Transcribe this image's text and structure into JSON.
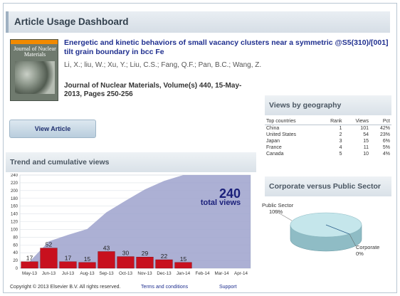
{
  "dashboard": {
    "title": "Article Usage Dashboard"
  },
  "article": {
    "cover_title": "Journal of Nuclear Materials",
    "title": "Energetic and kinetic behaviors of small vacancy clusters near a symmetric @S5(310)/[001] tilt grain boundary in bcc Fe",
    "authors": "Li, X.; liu, W.; Xu, Y.; Liu, C.S.; Fang, Q.F.; Pan, B.C.; Wang, Z.",
    "journal": "Journal of Nuclear Materials, Volume(s) 440, 15-May-2013, Pages 250-256",
    "view_button": "View Article"
  },
  "trend": {
    "title": "Trend and cumulative views",
    "total_value": "240",
    "total_label": "total views"
  },
  "geography": {
    "title": "Views by geography",
    "columns": [
      "Top countries",
      "Rank",
      "Views",
      "Pct"
    ],
    "rows": [
      [
        "China",
        "1",
        "101",
        "42%"
      ],
      [
        "United States",
        "2",
        "54",
        "23%"
      ],
      [
        "Japan",
        "3",
        "15",
        "6%"
      ],
      [
        "France",
        "4",
        "11",
        "5%"
      ],
      [
        "Canada",
        "5",
        "10",
        "4%"
      ]
    ]
  },
  "sector": {
    "title": "Corporate versus Public Sector",
    "public_label": "Public Sector",
    "public_pct": "100%",
    "corporate_label": "Corporate",
    "corporate_pct": "0%"
  },
  "footer": {
    "copyright": "Copyright © 2013 Elsevier B.V. All rights reserved.",
    "terms": "Terms and conditions",
    "support": "Support"
  },
  "chart_data": [
    {
      "type": "bar",
      "title": "Trend and cumulative views",
      "categories": [
        "May-13",
        "Jun-13",
        "Jul-13",
        "Aug-13",
        "Sep-13",
        "Oct-13",
        "Nov-13",
        "Dec-13",
        "Jan-14",
        "Feb-14",
        "Mar-14",
        "Apr-14"
      ],
      "series": [
        {
          "values": [
            17,
            52,
            17,
            15,
            43,
            30,
            29,
            22,
            15,
            null,
            null,
            null
          ]
        }
      ],
      "cumulative": [
        17,
        69,
        86,
        101,
        144,
        174,
        203,
        225,
        240,
        240,
        240,
        240
      ],
      "yticks": [
        0,
        20,
        40,
        60,
        80,
        100,
        120,
        140,
        160,
        180,
        200,
        220,
        240
      ],
      "ylim": [
        0,
        240
      ],
      "bar_color": "#c8101e",
      "area_color": "#9ea2cc",
      "grid": true
    },
    {
      "type": "pie",
      "title": "Corporate versus Public Sector",
      "labels": [
        "Public Sector",
        "Corporate"
      ],
      "values": [
        100,
        0
      ],
      "colors": [
        "#b7dde3",
        "#2b5f8a"
      ]
    }
  ]
}
